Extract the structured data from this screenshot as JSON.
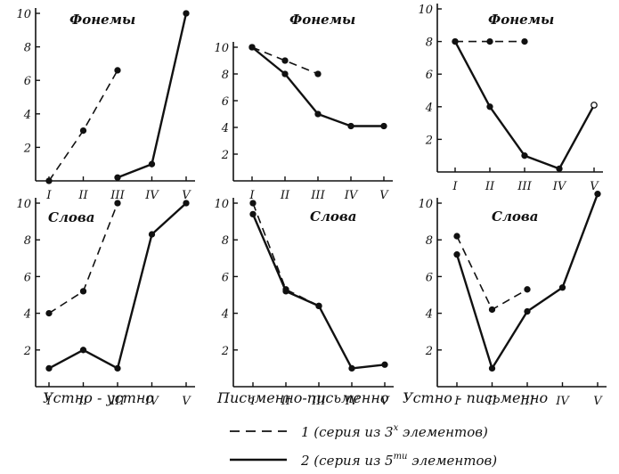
{
  "chart_data": [
    {
      "type": "line",
      "title": "Фонемы",
      "xlabel": "",
      "ylabel": "",
      "ylim": [
        0,
        10
      ],
      "categories": [
        "I",
        "II",
        "III",
        "IV",
        "V"
      ],
      "yticks": [
        "2",
        "4",
        "6",
        "8",
        "10"
      ],
      "series": [
        {
          "key": "1",
          "style": "dashed",
          "values": [
            0,
            3,
            6.6,
            null,
            null
          ]
        },
        {
          "key": "2",
          "style": "solid",
          "values": [
            null,
            null,
            0.2,
            1,
            10
          ]
        }
      ]
    },
    {
      "type": "line",
      "title": "Фонемы",
      "xlabel": "",
      "ylabel": "",
      "ylim": [
        0,
        10
      ],
      "categories": [
        "I",
        "II",
        "III",
        "IV",
        "V"
      ],
      "yticks": [
        "2",
        "4",
        "6",
        "8",
        "10"
      ],
      "series": [
        {
          "key": "1",
          "style": "dashed",
          "values": [
            10,
            9,
            8,
            null,
            null
          ]
        },
        {
          "key": "2",
          "style": "solid",
          "values": [
            10,
            8,
            5,
            4.1,
            4.1
          ]
        }
      ]
    },
    {
      "type": "line",
      "title": "Фонемы",
      "xlabel": "",
      "ylabel": "",
      "ylim": [
        0,
        10
      ],
      "categories": [
        "I",
        "II",
        "III",
        "IV",
        "V"
      ],
      "yticks": [
        "2",
        "4",
        "6",
        "8",
        "10"
      ],
      "series": [
        {
          "key": "1",
          "style": "dashed",
          "values": [
            8,
            8,
            8,
            null,
            null
          ]
        },
        {
          "key": "2",
          "style": "solid",
          "values": [
            8,
            4,
            1,
            0.2,
            4.1
          ]
        }
      ]
    },
    {
      "type": "line",
      "title": "Слова",
      "xlabel": "Устно - устно",
      "ylabel": "",
      "ylim": [
        0,
        10
      ],
      "categories": [
        "I",
        "II",
        "III",
        "IV",
        "V"
      ],
      "yticks": [
        "2",
        "4",
        "6",
        "8",
        "10"
      ],
      "series": [
        {
          "key": "1",
          "style": "dashed",
          "values": [
            4,
            5.2,
            10,
            null,
            null
          ]
        },
        {
          "key": "2",
          "style": "solid",
          "values": [
            1,
            2,
            1,
            8.3,
            10
          ]
        }
      ]
    },
    {
      "type": "line",
      "title": "Слова",
      "xlabel": "Письменно-письменно",
      "ylabel": "",
      "ylim": [
        0,
        10
      ],
      "categories": [
        "I",
        "II",
        "III",
        "IV",
        "V"
      ],
      "yticks": [
        "2",
        "4",
        "6",
        "8",
        "10"
      ],
      "series": [
        {
          "key": "1",
          "style": "dashed",
          "values": [
            10,
            5.3,
            4.4,
            null,
            null
          ]
        },
        {
          "key": "2",
          "style": "solid",
          "values": [
            9.4,
            5.2,
            4.4,
            1,
            1.2
          ]
        }
      ]
    },
    {
      "type": "line",
      "title": "Слова",
      "xlabel": "Устно - письменно",
      "ylabel": "",
      "ylim": [
        0,
        10
      ],
      "categories": [
        "I",
        "II",
        "III",
        "IV",
        "V"
      ],
      "yticks": [
        "2",
        "4",
        "6",
        "8",
        "10"
      ],
      "series": [
        {
          "key": "1",
          "style": "dashed",
          "values": [
            8.2,
            4.2,
            5.3,
            null,
            null
          ]
        },
        {
          "key": "2",
          "style": "solid",
          "values": [
            7.2,
            1,
            4.1,
            5.4,
            10.5
          ]
        }
      ]
    }
  ],
  "legend": {
    "dashed": {
      "text": "1 (серия из 3",
      "sup": "х",
      "tail": " элементов)"
    },
    "solid": {
      "text": "2 (серия из 5",
      "sup": "ти",
      "tail": " элементов)"
    }
  }
}
